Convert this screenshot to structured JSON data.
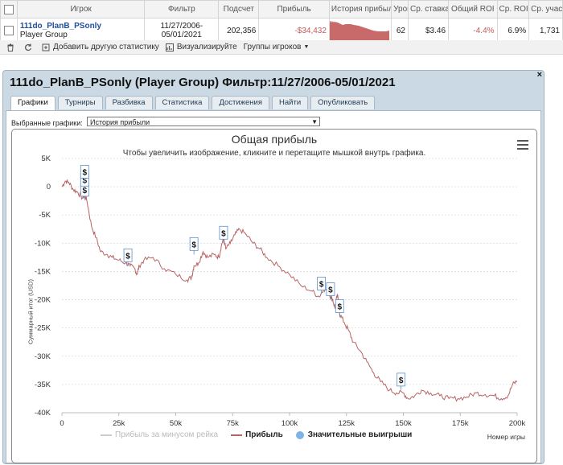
{
  "table": {
    "headers": [
      "Игрок",
      "Фильтр",
      "Подсчет",
      "Прибыль",
      "История прибыли",
      "Уровень",
      "Ср. ставка",
      "Общий ROI",
      "Ср. ROI",
      "Ср. участ"
    ],
    "row": {
      "player_name": "111do_PlanB_PSonly",
      "player_group": "Player Group",
      "filter_line1": "11/27/2006-",
      "filter_line2": "05/01/2021",
      "count": "202,356",
      "profit": "-$34,432",
      "level": "62",
      "avg_stake": "$3.46",
      "total_roi": "-4.4%",
      "avg_roi": "6.9%",
      "avg_part": "1,731"
    }
  },
  "toolbar": {
    "add_stats": "Добавить другую статистику",
    "visualize": "Визуализируйте",
    "player_groups": "Группы игроков"
  },
  "panel": {
    "title": "111do_PlanB_PSonly (Player Group) Фильтр:11/27/2006-05/01/2021",
    "close": "×",
    "tabs": [
      "Графики",
      "Турниры",
      "Разбивка",
      "Статистика",
      "Достижения",
      "Найти",
      "Опубликовать"
    ],
    "selected_charts_label": "Выбранные графики:",
    "selected_chart_value": "История прибыли"
  },
  "chart_data": {
    "type": "line",
    "title": "Общая прибыль",
    "subtitle": "Чтобы увеличить изображение, кликните и перетащите мышкой внутрь графика.",
    "ylabel": "Суммарный итог (USD)",
    "xlabel": "Номер игры",
    "ylim": [
      -40000,
      5000
    ],
    "xlim": [
      0,
      200000
    ],
    "y_ticks": [
      "5K",
      "0",
      "-5K",
      "-10K",
      "-15K",
      "-20K",
      "-25K",
      "-30K",
      "-35K",
      "-40K"
    ],
    "x_ticks": [
      "0",
      "25k",
      "50k",
      "75k",
      "100k",
      "125k",
      "150k",
      "175k",
      "200k"
    ],
    "grid": true,
    "legend": [
      "Прибыль за минусом рейка",
      "Прибыль",
      "Значительные выигрыши"
    ],
    "colors": {
      "profit": "#b86464",
      "rake": "#cccccc",
      "wins": "#7fb3e8"
    },
    "series": [
      {
        "name": "Прибыль",
        "points": [
          [
            0,
            0
          ],
          [
            1500,
            1000
          ],
          [
            3000,
            800
          ],
          [
            5000,
            -500
          ],
          [
            7000,
            -1000
          ],
          [
            9000,
            -2000
          ],
          [
            10000,
            -1500
          ],
          [
            11000,
            -2500
          ],
          [
            13000,
            -7000
          ],
          [
            15000,
            -9000
          ],
          [
            17000,
            -11500
          ],
          [
            20000,
            -12000
          ],
          [
            22000,
            -12500
          ],
          [
            25000,
            -13000
          ],
          [
            28000,
            -13500
          ],
          [
            30000,
            -14000
          ],
          [
            32000,
            -14500
          ],
          [
            33000,
            -15500
          ],
          [
            34000,
            -14000
          ],
          [
            36000,
            -13000
          ],
          [
            40000,
            -12500
          ],
          [
            45000,
            -14500
          ],
          [
            50000,
            -15500
          ],
          [
            55000,
            -16500
          ],
          [
            57000,
            -16000
          ],
          [
            58000,
            -14000
          ],
          [
            60000,
            -13500
          ],
          [
            62000,
            -11500
          ],
          [
            64000,
            -12500
          ],
          [
            67000,
            -12000
          ],
          [
            69000,
            -12500
          ],
          [
            70000,
            -10500
          ],
          [
            71000,
            -9000
          ],
          [
            72000,
            -11000
          ],
          [
            74000,
            -10000
          ],
          [
            76000,
            -8500
          ],
          [
            78000,
            -7500
          ],
          [
            81000,
            -8500
          ],
          [
            84000,
            -10000
          ],
          [
            87000,
            -11000
          ],
          [
            90000,
            -12500
          ],
          [
            95000,
            -14000
          ],
          [
            100000,
            -15500
          ],
          [
            105000,
            -17500
          ],
          [
            110000,
            -18500
          ],
          [
            113000,
            -19500
          ],
          [
            115000,
            -18000
          ],
          [
            117000,
            -18500
          ],
          [
            118000,
            -19500
          ],
          [
            119000,
            -20000
          ],
          [
            120000,
            -21500
          ],
          [
            121000,
            -19000
          ],
          [
            122000,
            -22500
          ],
          [
            124000,
            -24000
          ],
          [
            126000,
            -25500
          ],
          [
            128000,
            -27500
          ],
          [
            131000,
            -29000
          ],
          [
            134000,
            -31000
          ],
          [
            137000,
            -33000
          ],
          [
            140000,
            -34500
          ],
          [
            144000,
            -36000
          ],
          [
            147000,
            -36500
          ],
          [
            150000,
            -36500
          ],
          [
            152000,
            -37500
          ],
          [
            155000,
            -37000
          ],
          [
            158000,
            -36000
          ],
          [
            162000,
            -36500
          ],
          [
            166000,
            -37000
          ],
          [
            170000,
            -37500
          ],
          [
            174000,
            -37500
          ],
          [
            178000,
            -37200
          ],
          [
            182000,
            -36500
          ],
          [
            186000,
            -36800
          ],
          [
            190000,
            -37000
          ],
          [
            193000,
            -37500
          ],
          [
            196000,
            -37000
          ],
          [
            198000,
            -35000
          ],
          [
            200000,
            -34400
          ]
        ]
      }
    ],
    "big_wins": [
      [
        10000,
        -400
      ],
      [
        10000,
        1400
      ],
      [
        10000,
        2800
      ],
      [
        29000,
        -12000
      ],
      [
        58000,
        -10000
      ],
      [
        71000,
        -8000
      ],
      [
        114000,
        -17000
      ],
      [
        118000,
        -18000
      ],
      [
        122000,
        -21000
      ],
      [
        149000,
        -34000
      ]
    ]
  }
}
